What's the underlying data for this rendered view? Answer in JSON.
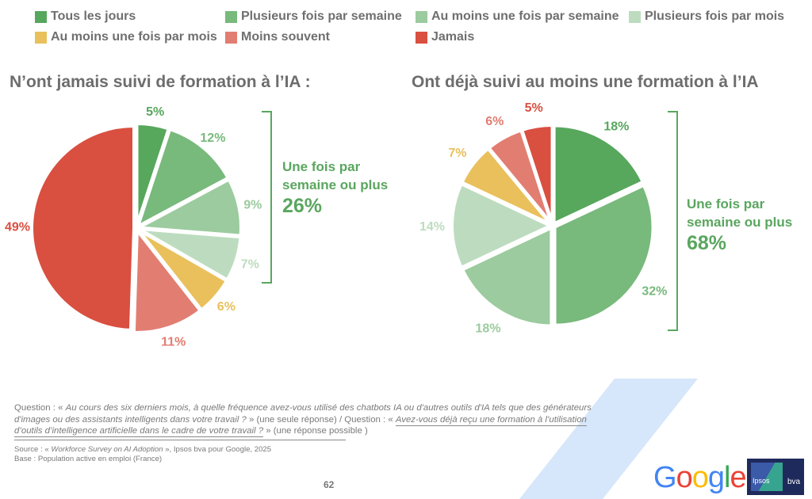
{
  "legend": [
    {
      "label": "Tous les jours",
      "color": "#57a75d"
    },
    {
      "label": "Plusieurs fois par semaine",
      "color": "#78b97c"
    },
    {
      "label": "Au moins une fois par semaine",
      "color": "#9bcb9e"
    },
    {
      "label": "Plusieurs fois par mois",
      "color": "#bddcbf"
    },
    {
      "label": "Au moins une fois par mois",
      "color": "#e9c05c"
    },
    {
      "label": "Moins souvent",
      "color": "#e27d72"
    },
    {
      "label": "Jamais",
      "color": "#d94f40"
    }
  ],
  "chart_data": [
    {
      "type": "pie",
      "title": "N’ont jamais suivi de formation à l’IA :",
      "categories": [
        "Tous les jours",
        "Plusieurs fois par semaine",
        "Au moins une fois par semaine",
        "Plusieurs fois par mois",
        "Au moins une fois par mois",
        "Moins souvent",
        "Jamais"
      ],
      "values": [
        5,
        12,
        9,
        7,
        6,
        11,
        49
      ],
      "labels": [
        "5%",
        "12%",
        "9%",
        "7%",
        "6%",
        "11%",
        "49%"
      ],
      "label_colors": [
        "#57a75d",
        "#78b97c",
        "#9bcb9e",
        "#bddcbf",
        "#e9c05c",
        "#e27d72",
        "#d94f40"
      ],
      "bracket": {
        "text_line1": "Une fois par",
        "text_line2": "semaine ou plus",
        "value": "26%"
      }
    },
    {
      "type": "pie",
      "title": "Ont déjà suivi au moins une formation à l’IA",
      "categories": [
        "Tous les jours",
        "Plusieurs fois par semaine",
        "Au moins une fois par semaine",
        "Plusieurs fois par mois",
        "Au moins une fois par mois",
        "Moins souvent",
        "Jamais"
      ],
      "values": [
        18,
        32,
        18,
        14,
        7,
        6,
        5
      ],
      "labels": [
        "18%",
        "32%",
        "18%",
        "14%",
        "7%",
        "6%",
        "5%"
      ],
      "label_colors": [
        "#57a75d",
        "#78b97c",
        "#9bcb9e",
        "#bddcbf",
        "#e9c05c",
        "#e27d72",
        "#d94f40"
      ],
      "bracket": {
        "text_line1": "Une fois par",
        "text_line2": "semaine ou plus",
        "value": "68%"
      }
    }
  ],
  "footer": {
    "q1_prefix": "Question : « ",
    "q1_italic": "Au cours des six derniers mois, à quelle fréquence avez-vous utilisé des chatbots IA ou d'autres outils d'IA tels que des générateurs d'images ou des assistants intelligents dans votre travail ?",
    "q1_suffix": " » (une seule réponse) / Question : « ",
    "q2_italic": "Avez-vous déjà reçu une formation à l’utilisation d’outils d’intelligence artificielle dans le cadre de votre travail ?",
    "q2_suffix": " » (une réponse possible )",
    "source_prefix": "Source : « ",
    "source_italic": "Workforce Survey on AI Adoption",
    "source_suffix": " », Ipsos bva pour Google, 2025",
    "base": "Base : Population active en emploi (France)"
  },
  "page_number": "62",
  "logos": {
    "google": "Google",
    "ipsos": "Ipsos",
    "bva": "bva"
  }
}
